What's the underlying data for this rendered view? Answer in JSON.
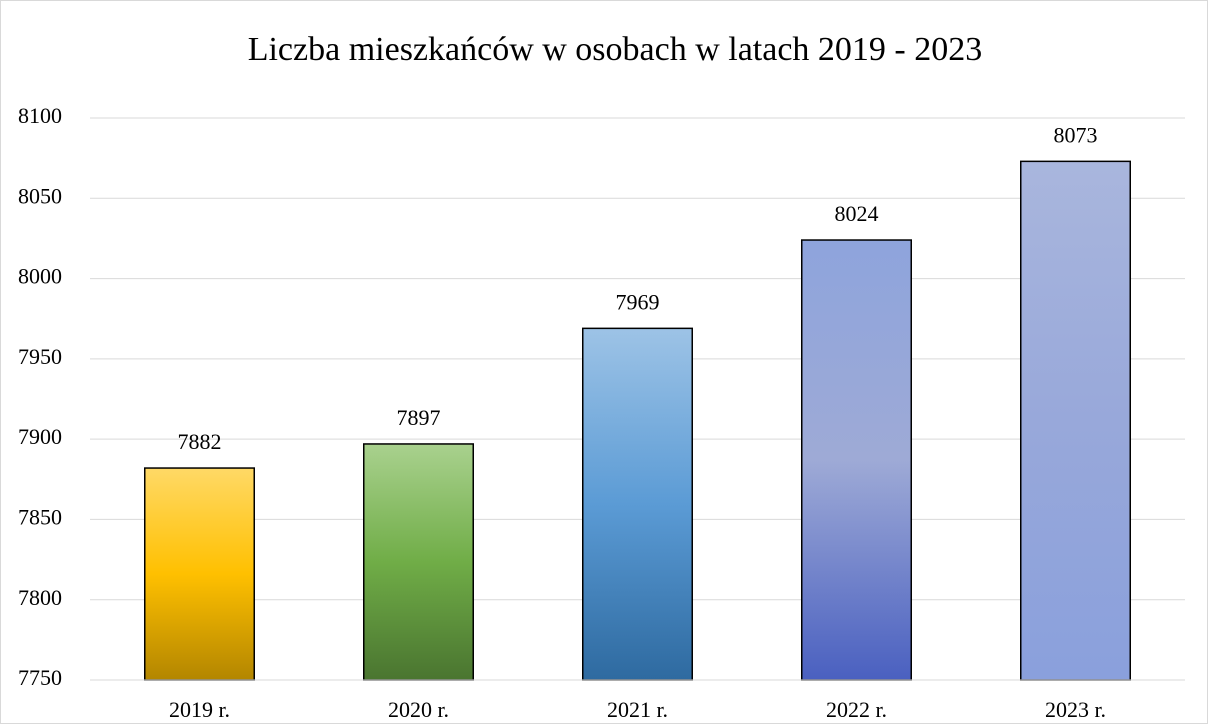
{
  "chart_data": {
    "type": "bar",
    "title": "Liczba mieszkańców w osobach w latach 2019 - 2023",
    "categories": [
      "2019 r.",
      "2020 r.",
      "2021 r.",
      "2022 r.",
      "2023 r."
    ],
    "values": [
      7882,
      7897,
      7969,
      8024,
      8073
    ],
    "colors": [
      [
        "#ffd966",
        "#ffc000",
        "#b38600"
      ],
      [
        "#a9d18e",
        "#70ad47",
        "#4a7530"
      ],
      [
        "#9dc3e6",
        "#5b9bd5",
        "#2e6aa0"
      ],
      [
        "#8ea4dc",
        "#9eaad6",
        "#4a60c0"
      ],
      [
        "#a9b6dd",
        "#98a8da",
        "#8aa0dc"
      ]
    ],
    "ylim": [
      7750,
      8100
    ],
    "yticks": [
      7750,
      7800,
      7850,
      7900,
      7950,
      8000,
      8050,
      8100
    ],
    "grid": true
  }
}
